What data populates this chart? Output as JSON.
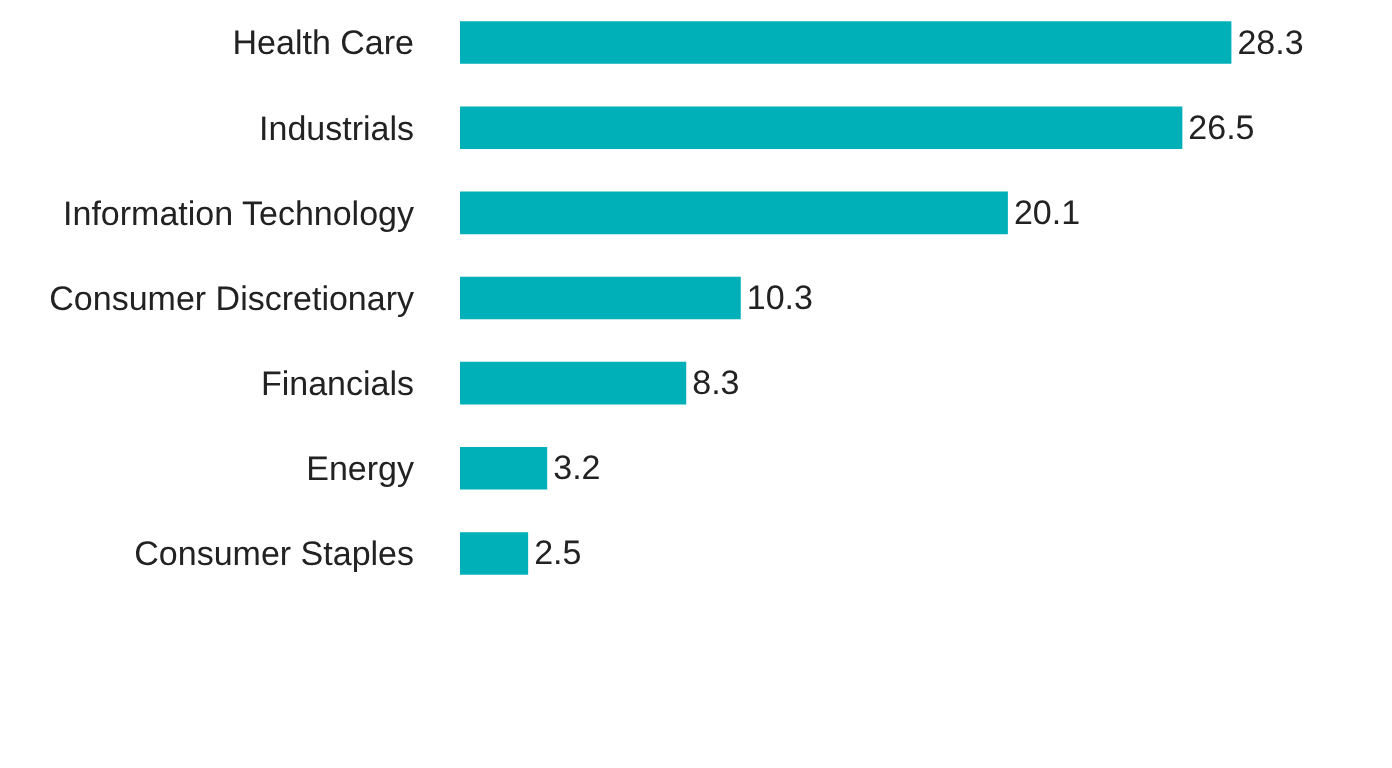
{
  "chart_data": {
    "type": "bar",
    "orientation": "horizontal",
    "categories": [
      "Health Care",
      "Industrials",
      "Information Technology",
      "Consumer Discretionary",
      "Financials",
      "Energy",
      "Consumer Staples"
    ],
    "values": [
      28.3,
      26.5,
      20.1,
      10.3,
      8.3,
      3.2,
      2.5
    ],
    "color": "#00b0b9",
    "data_labels": true,
    "grid": false,
    "legend": false
  }
}
